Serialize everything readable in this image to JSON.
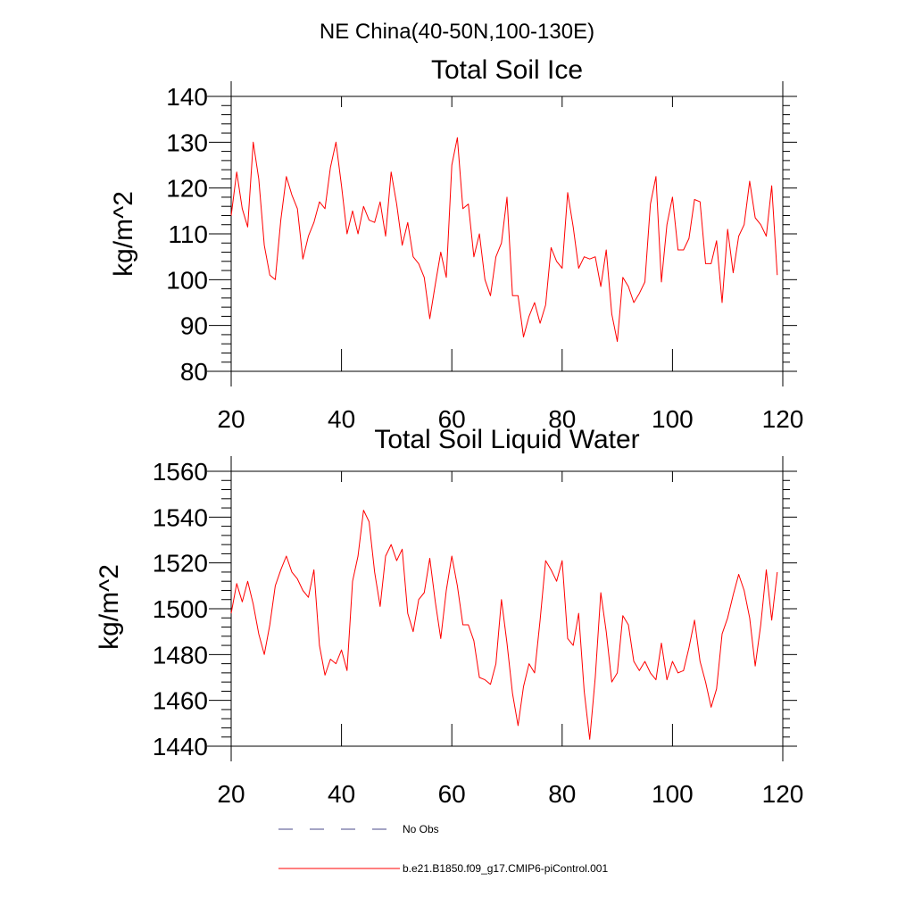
{
  "figure_title": "NE China(40-50N,100-130E)",
  "legend": [
    {
      "label": "No Obs",
      "color": "#4a4a8a",
      "style": "dashed"
    },
    {
      "label": "b.e21.B1850.f09_g17.CMIP6-piControl.001",
      "color": "#ff0000",
      "style": "solid"
    }
  ],
  "chart_data": [
    {
      "type": "line",
      "title": "Total Soil Ice",
      "xlabel": "",
      "ylabel": "kg/m^2",
      "xlim": [
        20,
        120
      ],
      "ylim": [
        80,
        140
      ],
      "x_ticks": [
        20,
        40,
        60,
        80,
        100,
        120
      ],
      "y_ticks": [
        80,
        90,
        100,
        110,
        120,
        130,
        140
      ],
      "grid": false,
      "series": [
        {
          "name": "b.e21.B1850.f09_g17.CMIP6-piControl.001",
          "color": "#ff0000",
          "x": [
            20,
            21,
            22,
            23,
            24,
            25,
            26,
            27,
            28,
            29,
            30,
            31,
            32,
            33,
            34,
            35,
            36,
            37,
            38,
            39,
            40,
            41,
            42,
            43,
            44,
            45,
            46,
            47,
            48,
            49,
            50,
            51,
            52,
            53,
            54,
            55,
            56,
            57,
            58,
            59,
            60,
            61,
            62,
            63,
            64,
            65,
            66,
            67,
            68,
            69,
            70,
            71,
            72,
            73,
            74,
            75,
            76,
            77,
            78,
            79,
            80,
            81,
            82,
            83,
            84,
            85,
            86,
            87,
            88,
            89,
            90,
            91,
            92,
            93,
            94,
            95,
            96,
            97,
            98,
            99,
            100,
            101,
            102,
            103,
            104,
            105,
            106,
            107,
            108,
            109,
            110,
            111,
            112,
            113,
            114,
            115,
            116,
            117,
            118,
            119
          ],
          "values": [
            114,
            123.5,
            115.5,
            111.5,
            130,
            122,
            107.5,
            101,
            100,
            113,
            122.5,
            118.5,
            115.5,
            104.5,
            109.5,
            112.5,
            117,
            115.5,
            124.5,
            130,
            120.5,
            110,
            115,
            110,
            116,
            113,
            112.5,
            117,
            109.5,
            123.5,
            116.5,
            107.5,
            112.5,
            105,
            103.5,
            100.5,
            91.5,
            99,
            106,
            100.5,
            125,
            131,
            115.5,
            116.5,
            105,
            110,
            100,
            96.5,
            105,
            108,
            118,
            96.5,
            96.5,
            87.5,
            92,
            95,
            90.5,
            94.5,
            107,
            104,
            102.5,
            119,
            111.5,
            102.5,
            105,
            104.5,
            105,
            98.5,
            106.5,
            92.5,
            86.5,
            100.5,
            98.5,
            95,
            97,
            99.5,
            116.5,
            122.5,
            99.5,
            112,
            118,
            106.5,
            106.5,
            109,
            117.5,
            117,
            103.5,
            103.5,
            108.5,
            95,
            111,
            101.5,
            109.5,
            112,
            121.5,
            113.5,
            112,
            109.5,
            120.5,
            101
          ]
        }
      ]
    },
    {
      "type": "line",
      "title": "Total Soil Liquid Water",
      "xlabel": "",
      "ylabel": "kg/m^2",
      "xlim": [
        20,
        120
      ],
      "ylim": [
        1440,
        1560
      ],
      "x_ticks": [
        20,
        40,
        60,
        80,
        100,
        120
      ],
      "y_ticks": [
        1440,
        1460,
        1480,
        1500,
        1520,
        1540,
        1560
      ],
      "grid": false,
      "series": [
        {
          "name": "b.e21.B1850.f09_g17.CMIP6-piControl.001",
          "color": "#ff0000",
          "x": [
            20,
            21,
            22,
            23,
            24,
            25,
            26,
            27,
            28,
            29,
            30,
            31,
            32,
            33,
            34,
            35,
            36,
            37,
            38,
            39,
            40,
            41,
            42,
            43,
            44,
            45,
            46,
            47,
            48,
            49,
            50,
            51,
            52,
            53,
            54,
            55,
            56,
            57,
            58,
            59,
            60,
            61,
            62,
            63,
            64,
            65,
            66,
            67,
            68,
            69,
            70,
            71,
            72,
            73,
            74,
            75,
            76,
            77,
            78,
            79,
            80,
            81,
            82,
            83,
            84,
            85,
            86,
            87,
            88,
            89,
            90,
            91,
            92,
            93,
            94,
            95,
            96,
            97,
            98,
            99,
            100,
            101,
            102,
            103,
            104,
            105,
            106,
            107,
            108,
            109,
            110,
            111,
            112,
            113,
            114,
            115,
            116,
            117,
            118,
            119
          ],
          "values": [
            1498,
            1511,
            1503,
            1512,
            1502,
            1489,
            1480,
            1493,
            1510,
            1517,
            1523,
            1516,
            1513,
            1508,
            1505,
            1517,
            1484,
            1471,
            1478,
            1476,
            1482,
            1473,
            1512,
            1523,
            1543,
            1538,
            1516,
            1501,
            1523,
            1528,
            1521,
            1526,
            1498,
            1490,
            1504,
            1507,
            1522,
            1503,
            1487,
            1508,
            1523,
            1510,
            1493,
            1493,
            1486,
            1470,
            1469,
            1467,
            1476,
            1504,
            1485,
            1463,
            1449,
            1466,
            1476,
            1472,
            1495,
            1521,
            1517,
            1512,
            1521,
            1487,
            1484,
            1498,
            1464,
            1443,
            1470,
            1507,
            1490,
            1468,
            1472,
            1497,
            1493,
            1477,
            1473,
            1477,
            1472,
            1469,
            1485,
            1469,
            1477,
            1472,
            1473,
            1483,
            1495,
            1477,
            1468,
            1457,
            1465,
            1489,
            1496,
            1506,
            1515,
            1508,
            1496,
            1475,
            1493,
            1517,
            1495,
            1516
          ]
        }
      ]
    }
  ]
}
